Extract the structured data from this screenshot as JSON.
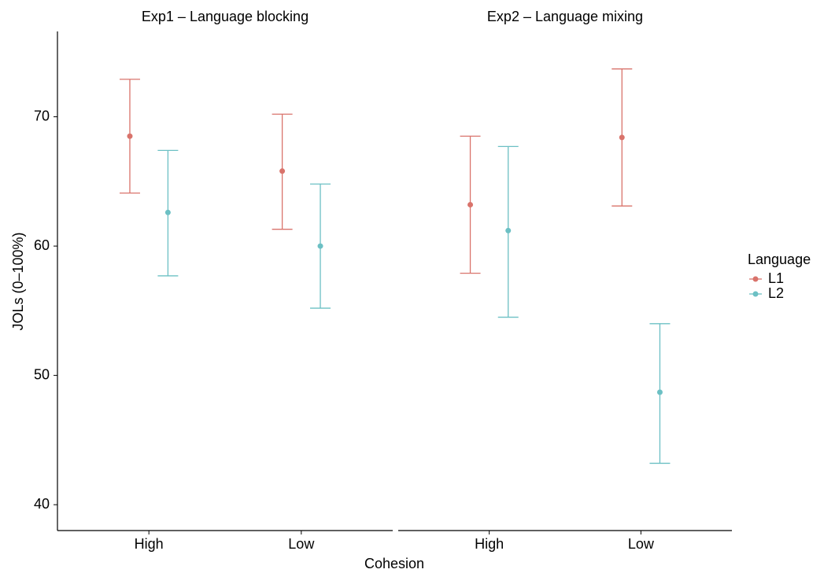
{
  "chart_data": {
    "type": "errorbar",
    "ylabel": "JOLs (0–100%)",
    "xlabel": "Cohesion",
    "legend_title": "Language",
    "ylim": [
      38.0,
      76.6
    ],
    "yticks": [
      40,
      50,
      60,
      70
    ],
    "facets": [
      {
        "title": "Exp1 – Language blocking",
        "categories": [
          "High",
          "Low"
        ],
        "series": [
          {
            "name": "L1",
            "color": "#d9736b",
            "values": [
              68.5,
              65.8
            ],
            "lower": [
              64.1,
              61.3
            ],
            "upper": [
              72.9,
              70.2
            ]
          },
          {
            "name": "L2",
            "color": "#6cc0c4",
            "values": [
              62.6,
              60.0
            ],
            "lower": [
              57.7,
              55.2
            ],
            "upper": [
              67.4,
              64.8
            ]
          }
        ]
      },
      {
        "title": "Exp2 – Language mixing",
        "categories": [
          "High",
          "Low"
        ],
        "series": [
          {
            "name": "L1",
            "color": "#d9736b",
            "values": [
              63.2,
              68.4
            ],
            "lower": [
              57.9,
              63.1
            ],
            "upper": [
              68.5,
              73.7
            ]
          },
          {
            "name": "L2",
            "color": "#6cc0c4",
            "values": [
              61.2,
              48.7
            ],
            "lower": [
              54.5,
              43.2
            ],
            "upper": [
              67.7,
              54.0
            ]
          }
        ]
      }
    ]
  }
}
